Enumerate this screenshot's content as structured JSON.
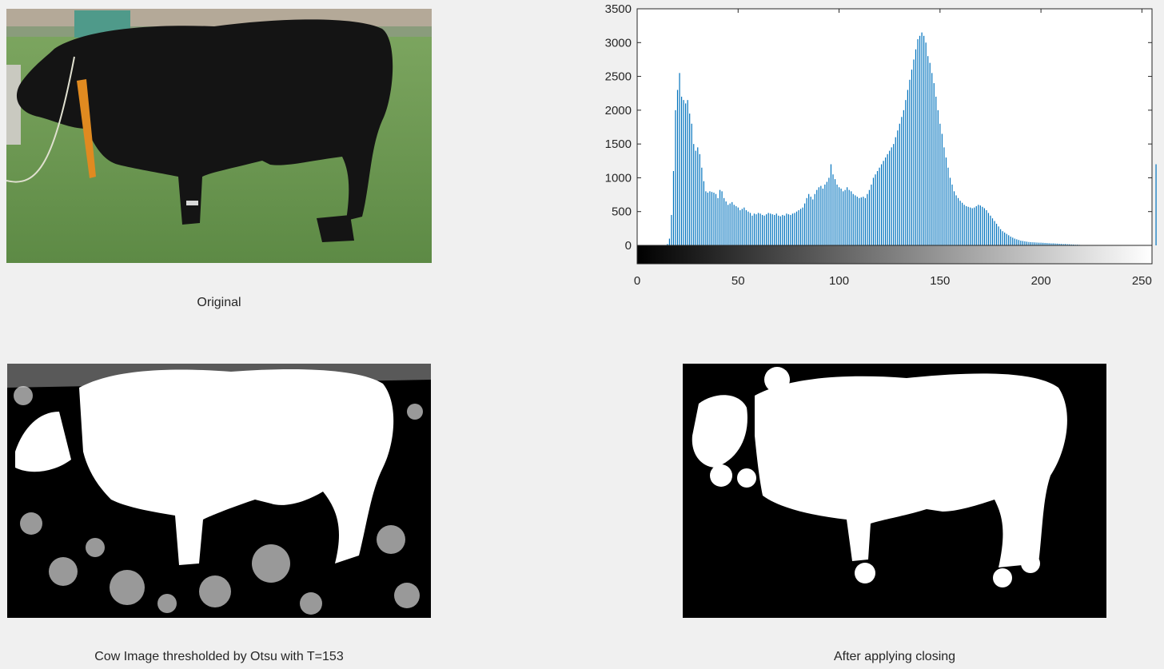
{
  "figure": {
    "panels": [
      {
        "id": "original",
        "caption": "Original"
      },
      {
        "id": "histogram",
        "caption": ""
      },
      {
        "id": "thresholded",
        "caption": "Cow Image thresholded by Otsu with T=153"
      },
      {
        "id": "closed",
        "caption": "After applying closing"
      }
    ],
    "colors": {
      "background": "#f0f0f0",
      "bars": "#0072bd",
      "axis": "#262626",
      "grass": "#6f9a55",
      "cow": "#141414"
    }
  },
  "chart_data": {
    "type": "bar",
    "title": "",
    "xlabel": "",
    "ylabel": "",
    "xlim": [
      0,
      255
    ],
    "ylim": [
      0,
      3500
    ],
    "xticks": [
      0,
      50,
      100,
      150,
      200,
      250
    ],
    "yticks": [
      0,
      500,
      1000,
      1500,
      2000,
      2500,
      3000,
      3500
    ],
    "colorbar": "grayscale",
    "grid": false,
    "series": [
      {
        "values": [
          0,
          0,
          0,
          0,
          0,
          0,
          0,
          0,
          0,
          0,
          0,
          0,
          0,
          0,
          0,
          20,
          100,
          450,
          1100,
          2000,
          2300,
          2550,
          2200,
          2150,
          2100,
          2150,
          1950,
          1800,
          1500,
          1400,
          1450,
          1350,
          1150,
          950,
          800,
          780,
          800,
          790,
          780,
          760,
          700,
          820,
          800,
          700,
          650,
          600,
          620,
          640,
          600,
          580,
          560,
          520,
          540,
          560,
          520,
          500,
          480,
          440,
          470,
          460,
          480,
          470,
          450,
          440,
          460,
          480,
          470,
          460,
          450,
          470,
          440,
          430,
          450,
          440,
          470,
          460,
          450,
          470,
          480,
          500,
          520,
          540,
          560,
          620,
          700,
          760,
          720,
          680,
          760,
          820,
          860,
          880,
          840,
          900,
          940,
          1000,
          1200,
          1050,
          980,
          900,
          860,
          840,
          800,
          820,
          860,
          820,
          800,
          760,
          740,
          720,
          700,
          710,
          720,
          700,
          760,
          820,
          900,
          1000,
          1050,
          1100,
          1150,
          1200,
          1250,
          1300,
          1350,
          1400,
          1450,
          1500,
          1600,
          1700,
          1800,
          1900,
          2000,
          2150,
          2300,
          2450,
          2600,
          2750,
          2900,
          3050,
          3100,
          3150,
          3100,
          3000,
          2800,
          2700,
          2550,
          2400,
          2200,
          2000,
          1800,
          1650,
          1450,
          1300,
          1150,
          1000,
          900,
          800,
          740,
          700,
          660,
          630,
          600,
          580,
          570,
          560,
          550,
          560,
          580,
          600,
          590,
          570,
          550,
          520,
          480,
          440,
          400,
          360,
          320,
          280,
          240,
          210,
          190,
          170,
          150,
          130,
          115,
          100,
          90,
          80,
          70,
          65,
          60,
          55,
          50,
          48,
          46,
          44,
          42,
          40,
          40,
          38,
          36,
          34,
          32,
          30,
          30,
          28,
          26,
          24,
          22,
          20,
          20,
          18,
          16,
          14,
          12,
          10,
          10,
          8,
          6,
          5,
          5,
          4,
          4,
          3,
          3,
          2,
          2,
          1,
          1,
          1,
          1,
          0,
          0,
          0,
          0,
          0,
          0,
          0,
          0,
          0,
          0,
          0,
          0,
          0,
          0,
          0,
          0,
          0,
          0,
          0,
          0,
          0,
          0,
          0,
          0,
          1200
        ]
      }
    ]
  }
}
